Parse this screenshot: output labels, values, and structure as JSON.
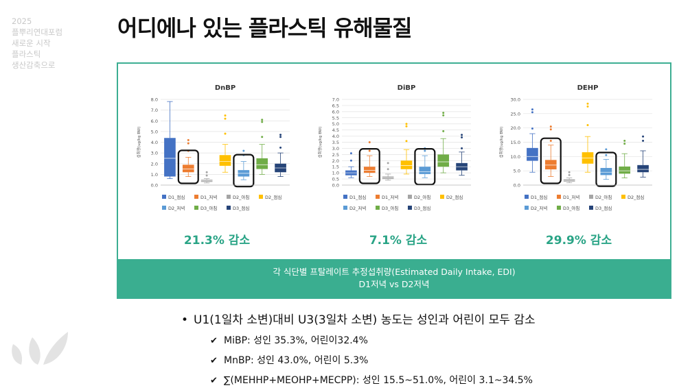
{
  "sidebar": {
    "lines": [
      "2025",
      "플뿌리연대포럼",
      "새로운 시작",
      "플라스틱",
      "생산감축으로"
    ]
  },
  "title": "어디에나 있는 플라스틱 유해물질",
  "band": {
    "line1": "각 식단별 프탈레이트 추정섭취량(Estimated Daily Intake, EDI)",
    "line2": "D1저녁 vs D2저녁"
  },
  "bullets": {
    "main": "U1(1일차 소변)대비 U3(3일차 소변) 농도는 성인과 어린이 모두 감소",
    "items": [
      "MiBP: 성인 35.3%, 어린이32.4%",
      "MnBP: 성인 43.0%, 어린이 5.3%",
      "∑(MEHHP+MEOHP+MECPP): 성인 15.5~51.0%, 어린이 3.1~34.5%"
    ]
  },
  "colors": {
    "accent": "#3aae90",
    "highlight_box": "#111111"
  },
  "chart_data": [
    {
      "type": "box",
      "title": "DnBP",
      "ylabel": "섭취량(ug/kg BW)",
      "ylim": [
        0,
        8
      ],
      "yticks": [
        "0.0",
        "1.0",
        "2.0",
        "3.0",
        "4.0",
        "5.0",
        "6.0",
        "7.0",
        "8.0"
      ],
      "highlighted": [
        "D1_저녁",
        "D2_저녁"
      ],
      "reduction_label": "21.3% 감소",
      "series": [
        {
          "name": "D1_점심",
          "color": "#4472c4",
          "min": 0.6,
          "q1": 0.8,
          "median": 2.5,
          "q3": 4.4,
          "max": 7.8,
          "outliers": []
        },
        {
          "name": "D1_저녁",
          "color": "#ed7d31",
          "min": 0.8,
          "q1": 1.2,
          "median": 1.5,
          "q3": 1.9,
          "max": 2.6,
          "outliers": [
            3.2,
            3.9,
            4.2
          ]
        },
        {
          "name": "D2_아침",
          "color": "#a5a5a5",
          "min": 0.2,
          "q1": 0.3,
          "median": 0.4,
          "q3": 0.5,
          "max": 0.6,
          "outliers": [
            0.9,
            1.2
          ]
        },
        {
          "name": "D2_점심",
          "color": "#ffc000",
          "min": 1.2,
          "q1": 1.8,
          "median": 2.2,
          "q3": 2.8,
          "max": 3.8,
          "outliers": [
            4.8,
            6.2,
            6.5
          ]
        },
        {
          "name": "D2_저녁",
          "color": "#5b9bd5",
          "min": 0.5,
          "q1": 0.8,
          "median": 1.1,
          "q3": 1.4,
          "max": 2.2,
          "outliers": [
            2.8,
            3.2
          ]
        },
        {
          "name": "D3_아침",
          "color": "#70ad47",
          "min": 1.0,
          "q1": 1.5,
          "median": 1.9,
          "q3": 2.5,
          "max": 3.8,
          "outliers": [
            4.5,
            5.9,
            6.1
          ]
        },
        {
          "name": "D3_점심",
          "color": "#264478",
          "min": 0.8,
          "q1": 1.2,
          "median": 1.6,
          "q3": 2.0,
          "max": 3.0,
          "outliers": [
            3.5,
            4.5,
            4.7
          ]
        }
      ]
    },
    {
      "type": "box",
      "title": "DiBP",
      "ylabel": "섭취량(ug/kg BW)",
      "ylim": [
        0,
        7
      ],
      "yticks": [
        "0.0",
        "0.5",
        "1.0",
        "1.5",
        "2.0",
        "2.5",
        "3.0",
        "3.5",
        "4.0",
        "4.5",
        "5.0",
        "5.5",
        "6.0",
        "6.5",
        "7.0"
      ],
      "highlighted": [
        "D1_저녁",
        "D2_저녁"
      ],
      "reduction_label": "7.1% 감소",
      "series": [
        {
          "name": "D1_점심",
          "color": "#4472c4",
          "min": 0.6,
          "q1": 0.8,
          "median": 1.0,
          "q3": 1.2,
          "max": 1.5,
          "outliers": [
            2.0,
            2.6
          ]
        },
        {
          "name": "D1_저녁",
          "color": "#ed7d31",
          "min": 0.7,
          "q1": 1.0,
          "median": 1.2,
          "q3": 1.5,
          "max": 2.4,
          "outliers": [
            2.8,
            3.5
          ]
        },
        {
          "name": "D2_아침",
          "color": "#a5a5a5",
          "min": 0.4,
          "q1": 0.5,
          "median": 0.6,
          "q3": 0.7,
          "max": 0.9,
          "outliers": [
            1.3,
            1.8
          ]
        },
        {
          "name": "D2_점심",
          "color": "#ffc000",
          "min": 0.9,
          "q1": 1.3,
          "median": 1.6,
          "q3": 2.0,
          "max": 2.9,
          "outliers": [
            3.6,
            4.8,
            5.0
          ]
        },
        {
          "name": "D2_저녁",
          "color": "#5b9bd5",
          "min": 0.6,
          "q1": 0.9,
          "median": 1.1,
          "q3": 1.5,
          "max": 2.4,
          "outliers": [
            2.8,
            3.0
          ]
        },
        {
          "name": "D3_아침",
          "color": "#70ad47",
          "min": 1.0,
          "q1": 1.5,
          "median": 1.9,
          "q3": 2.5,
          "max": 3.8,
          "outliers": [
            4.4,
            5.7,
            5.9
          ]
        },
        {
          "name": "D3_점심",
          "color": "#264478",
          "min": 0.8,
          "q1": 1.2,
          "median": 1.5,
          "q3": 1.8,
          "max": 2.7,
          "outliers": [
            3.0,
            3.9,
            4.1
          ]
        }
      ]
    },
    {
      "type": "box",
      "title": "DEHP",
      "ylabel": "섭취량(ug/kg BW)",
      "ylim": [
        0,
        30
      ],
      "yticks": [
        "0.0",
        "5.0",
        "10.0",
        "15.0",
        "20.0",
        "25.0",
        "30.0"
      ],
      "highlighted": [
        "D1_저녁",
        "D2_저녁"
      ],
      "reduction_label": "29.9% 감소",
      "series": [
        {
          "name": "D1_점심",
          "color": "#4472c4",
          "min": 4.5,
          "q1": 8.5,
          "median": 10.0,
          "q3": 13.0,
          "max": 18.0,
          "outliers": [
            19.8,
            25.5,
            26.5
          ]
        },
        {
          "name": "D1_저녁",
          "color": "#ed7d31",
          "min": 3.0,
          "q1": 5.5,
          "median": 7.0,
          "q3": 8.8,
          "max": 14.0,
          "outliers": [
            15.5,
            19.5,
            20.5
          ]
        },
        {
          "name": "D2_아침",
          "color": "#a5a5a5",
          "min": 0.8,
          "q1": 1.2,
          "median": 1.5,
          "q3": 2.0,
          "max": 2.5,
          "outliers": [
            3.5,
            4.5
          ]
        },
        {
          "name": "D2_점심",
          "color": "#ffc000",
          "min": 4.5,
          "q1": 7.5,
          "median": 9.5,
          "q3": 11.5,
          "max": 17.0,
          "outliers": [
            21.0,
            27.5,
            28.5
          ]
        },
        {
          "name": "D2_저녁",
          "color": "#5b9bd5",
          "min": 2.0,
          "q1": 3.5,
          "median": 4.5,
          "q3": 6.0,
          "max": 9.0,
          "outliers": [
            10.5,
            12.5
          ]
        },
        {
          "name": "D3_아침",
          "color": "#70ad47",
          "min": 2.5,
          "q1": 4.0,
          "median": 5.0,
          "q3": 6.5,
          "max": 11.0,
          "outliers": [
            14.5,
            15.5
          ]
        },
        {
          "name": "D3_점심",
          "color": "#264478",
          "min": 2.8,
          "q1": 4.5,
          "median": 5.5,
          "q3": 7.0,
          "max": 12.0,
          "outliers": [
            15.5,
            17.0
          ]
        }
      ]
    }
  ]
}
